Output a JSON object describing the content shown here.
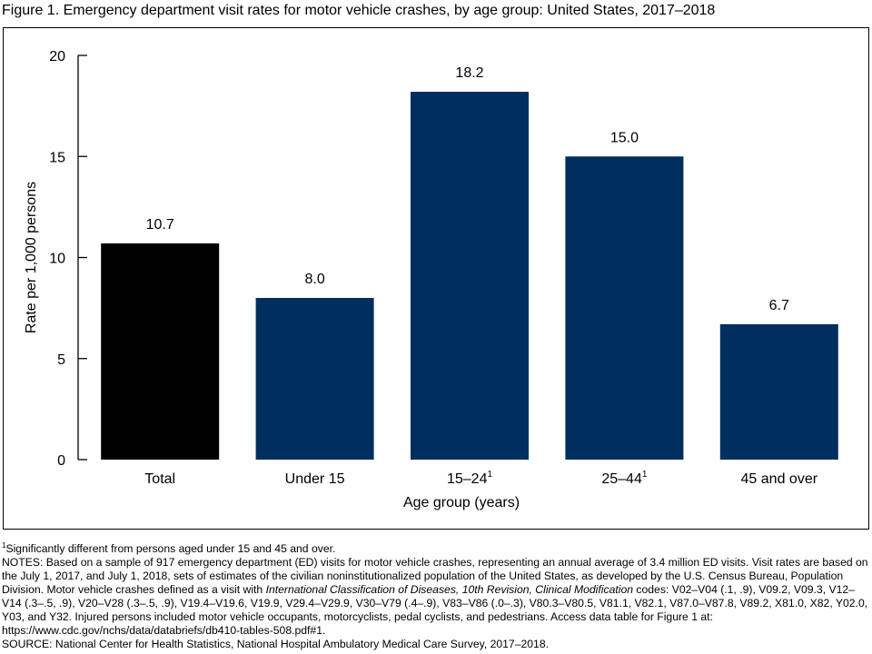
{
  "figure_title": "Figure 1. Emergency department visit rates for motor vehicle crashes, by age group: United States, 2017–2018",
  "chart_data": {
    "type": "bar",
    "categories": [
      "Total",
      "Under 15",
      "15–24",
      "25–44",
      "45 and over"
    ],
    "category_superscripts": [
      "",
      "",
      "1",
      "1",
      ""
    ],
    "values": [
      10.7,
      8.0,
      18.2,
      15.0,
      6.7
    ],
    "value_labels": [
      "10.7",
      "8.0",
      "18.2",
      "15.0",
      "6.7"
    ],
    "bar_colors": [
      "#000000",
      "#002f5f",
      "#002f5f",
      "#002f5f",
      "#002f5f"
    ],
    "xlabel": "Age group (years)",
    "ylabel": "Rate per 1,000 persons",
    "ylim": [
      0,
      20
    ],
    "yticks": [
      0,
      5,
      10,
      15,
      20
    ],
    "grid": false,
    "legend": "none"
  },
  "notes": {
    "footnote_marker": "1",
    "footnote": "Significantly different from persons aged under 15 and 45 and over.",
    "notes_part1": "NOTES: Based on a sample of 917 emergency department (ED) visits for motor vehicle crashes, representing an annual average of 3.4 million ED visits. Visit rates are based on the July 1, 2017, and July 1, 2018, sets of estimates of the civilian noninstitutionalized population of the United States, as developed by the U.S. Census Bureau, Population Division. Motor vehicle crashes defined as a visit with ",
    "notes_italic": "International Classification of Diseases, 10th Revision, Clinical Modification",
    "notes_part2": " codes: V02–V04 (.1, .9), V09.2, V09.3, V12–V14 (.3–.5, .9), V20–V28 (.3–.5, .9), V19.4–V19.6, V19.9, V29.4–V29.9, V30–V79 (.4–.9), V83–V86 (.0–.3), V80.3–V80.5, V81.1, V82.1, V87.0–V87.8, V89.2, X81.0, X82, Y02.0, Y03, and Y32. Injured persons included motor vehicle occupants, motorcyclists, pedal cyclists, and pedestrians. Access data table for Figure 1 at: https://www.cdc.gov/nchs/data/databriefs/db410-tables-508.pdf#1.",
    "source": "SOURCE: National Center for Health Statistics, National Hospital Ambulatory Medical Care Survey, 2017–2018."
  }
}
